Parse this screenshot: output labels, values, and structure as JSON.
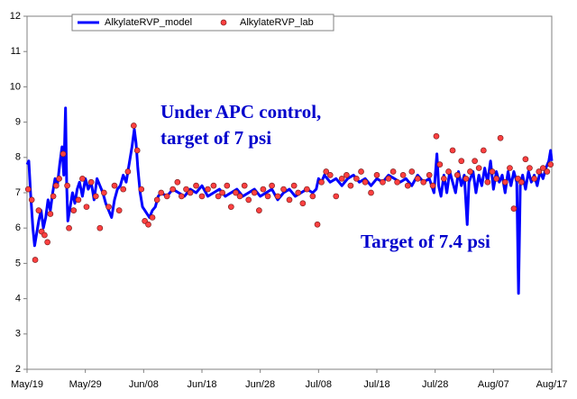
{
  "chart_data": {
    "type": "line",
    "annotations": [
      "Under APC control,",
      "target of 7 psi",
      "Target of 7.4 psi"
    ],
    "annotation_color": "#0000cc",
    "xlim": [
      0,
      90
    ],
    "xticks": [
      {
        "value": 0,
        "label": "May/19"
      },
      {
        "value": 10,
        "label": "May/29"
      },
      {
        "value": 20,
        "label": "Jun/08"
      },
      {
        "value": 30,
        "label": "Jun/18"
      },
      {
        "value": 40,
        "label": "Jun/28"
      },
      {
        "value": 50,
        "label": "Jul/08"
      },
      {
        "value": 60,
        "label": "Jul/18"
      },
      {
        "value": 70,
        "label": "Jul/28"
      },
      {
        "value": 80,
        "label": "Aug/07"
      },
      {
        "value": 90,
        "label": "Aug/17"
      }
    ],
    "ylim": [
      2,
      12
    ],
    "yticks": [
      2,
      3,
      4,
      5,
      6,
      7,
      8,
      9,
      10,
      11,
      12
    ],
    "legend": "top",
    "series": [
      {
        "name": "AlkylateRVP_model",
        "color": "#0000ff",
        "marker": "line",
        "x": [
          0,
          0.3,
          0.6,
          1.0,
          1.3,
          1.7,
          2.0,
          2.4,
          2.8,
          3.2,
          3.6,
          4.0,
          4.4,
          4.8,
          5.2,
          5.6,
          6.0,
          6.3,
          6.6,
          6.8,
          7.0,
          7.4,
          7.8,
          8.2,
          8.6,
          9.0,
          9.5,
          10.0,
          10.5,
          11.0,
          11.5,
          12.0,
          12.5,
          13.0,
          13.5,
          14.0,
          14.5,
          15.0,
          15.5,
          16.0,
          16.5,
          17.0,
          17.5,
          18.0,
          18.4,
          18.7,
          19.0,
          19.4,
          19.8,
          20.2,
          20.6,
          21.0,
          21.5,
          22.0,
          22.5,
          23,
          24,
          25,
          26,
          27,
          28,
          29,
          30,
          31,
          32,
          33,
          34,
          35,
          36,
          37,
          38,
          39,
          40,
          41,
          42,
          43,
          44,
          45,
          46,
          47,
          48,
          49,
          49.6,
          50.0,
          50.5,
          51,
          52,
          53,
          54,
          55,
          56,
          57,
          58,
          59,
          60,
          61,
          62,
          63,
          64,
          65,
          66,
          67,
          68,
          69,
          69.8,
          70.3,
          70.6,
          71,
          71.5,
          72,
          72.5,
          73,
          73.5,
          74,
          74.5,
          75,
          75.5,
          75.8,
          76.5,
          77,
          77.5,
          78,
          78.5,
          79,
          79.5,
          80,
          80.5,
          81,
          81.5,
          82,
          82.5,
          83,
          83.5,
          84.0,
          84.3,
          84.6,
          85,
          85.5,
          86,
          86.5,
          87,
          87.5,
          88,
          88.5,
          89,
          89.5,
          89.8,
          90
        ],
        "values": [
          7.8,
          7.9,
          7.0,
          6.0,
          5.5,
          5.9,
          6.2,
          6.5,
          6.0,
          6.3,
          6.8,
          6.5,
          7.0,
          7.4,
          7.2,
          7.8,
          8.3,
          7.5,
          9.4,
          7.2,
          6.2,
          6.6,
          7.0,
          6.7,
          7.1,
          7.3,
          6.9,
          7.4,
          7.1,
          7.3,
          6.8,
          7.4,
          7.2,
          7.0,
          6.7,
          6.5,
          6.3,
          6.8,
          7.1,
          7.2,
          7.5,
          7.3,
          7.8,
          8.3,
          8.8,
          8.4,
          7.7,
          7.0,
          6.6,
          6.5,
          6.4,
          6.3,
          6.5,
          6.6,
          6.9,
          7.0,
          6.9,
          7.1,
          7.0,
          6.9,
          7.1,
          7.0,
          7.2,
          6.9,
          7.0,
          7.1,
          6.9,
          7.0,
          7.1,
          6.9,
          7.0,
          7.1,
          6.9,
          7.0,
          7.1,
          6.8,
          7.0,
          7.1,
          6.9,
          7.0,
          7.1,
          7.0,
          7.1,
          7.4,
          7.3,
          7.5,
          7.3,
          7.4,
          7.2,
          7.4,
          7.5,
          7.3,
          7.4,
          7.2,
          7.4,
          7.3,
          7.5,
          7.4,
          7.3,
          7.4,
          7.2,
          7.5,
          7.3,
          7.4,
          7.0,
          8.1,
          7.2,
          6.9,
          7.5,
          7.0,
          7.6,
          7.3,
          7.0,
          7.6,
          7.2,
          7.5,
          6.1,
          7.3,
          7.6,
          7.0,
          7.5,
          7.2,
          7.7,
          7.3,
          7.9,
          7.1,
          7.6,
          7.3,
          7.5,
          7.0,
          7.6,
          7.2,
          7.6,
          7.3,
          4.15,
          7.2,
          7.5,
          7.1,
          7.6,
          7.3,
          7.5,
          7.2,
          7.6,
          7.4,
          7.7,
          7.9,
          8.2,
          7.9
        ]
      },
      {
        "name": "AlkylateRVP_lab",
        "color": "#ff4040",
        "marker": "circle",
        "x": [
          0.2,
          0.8,
          1.4,
          2,
          2.5,
          3.0,
          3.5,
          4,
          4.5,
          5.0,
          5.5,
          6.2,
          6.9,
          7.2,
          8,
          8.8,
          9.5,
          10.2,
          11,
          11.8,
          12.5,
          13.2,
          14,
          15,
          15.8,
          16.5,
          17.3,
          18.3,
          18.9,
          19.6,
          20.2,
          20.8,
          21.5,
          22.3,
          23,
          24,
          25,
          25.8,
          26.5,
          27.3,
          28,
          29,
          30,
          31,
          32,
          32.8,
          33.5,
          34.3,
          35,
          35.8,
          36.5,
          37.3,
          38,
          39,
          39.8,
          40.5,
          41.3,
          42,
          43,
          44,
          45,
          45.8,
          46.5,
          47.3,
          48,
          49,
          49.8,
          50.5,
          51.3,
          52,
          53,
          54,
          54.8,
          55.5,
          56.5,
          57.3,
          58,
          59,
          60,
          61,
          62,
          62.8,
          63.5,
          64.5,
          65.3,
          66,
          67,
          68,
          69,
          69.6,
          70.2,
          70.8,
          71.5,
          72.3,
          73,
          73.8,
          74.5,
          75.3,
          76,
          76.8,
          77.5,
          78.3,
          79,
          79.8,
          80.5,
          81.2,
          82,
          82.8,
          83.5,
          84.2,
          84.8,
          85.5,
          86.2,
          87,
          87.8,
          88.5,
          89.2,
          89.8
        ],
        "values": [
          7.1,
          6.8,
          5.1,
          6.5,
          5.9,
          5.8,
          5.6,
          6.4,
          6.9,
          7.2,
          7.4,
          8.1,
          7.2,
          6.0,
          6.5,
          6.8,
          7.4,
          6.6,
          7.3,
          6.9,
          6.0,
          7.0,
          6.6,
          7.2,
          6.5,
          7.1,
          7.6,
          8.9,
          8.2,
          7.1,
          6.2,
          6.1,
          6.3,
          6.8,
          7.0,
          6.9,
          7.1,
          7.3,
          6.9,
          7.1,
          7.0,
          7.2,
          6.9,
          7.1,
          7.2,
          6.9,
          7.0,
          7.2,
          6.6,
          7.0,
          6.9,
          7.2,
          6.8,
          7.0,
          6.5,
          7.1,
          6.9,
          7.2,
          6.9,
          7.1,
          6.8,
          7.2,
          7.0,
          6.7,
          7.1,
          6.9,
          6.1,
          7.3,
          7.6,
          7.5,
          6.9,
          7.4,
          7.5,
          7.2,
          7.4,
          7.6,
          7.3,
          7.0,
          7.5,
          7.3,
          7.4,
          7.6,
          7.3,
          7.5,
          7.2,
          7.6,
          7.4,
          7.3,
          7.5,
          7.2,
          8.6,
          7.8,
          7.4,
          7.6,
          8.2,
          7.5,
          7.9,
          7.4,
          7.6,
          7.9,
          7.7,
          8.2,
          7.3,
          7.6,
          7.4,
          8.55,
          7.3,
          7.7,
          6.55,
          7.4,
          7.3,
          7.95,
          7.7,
          7.4,
          7.6,
          7.7,
          7.6,
          7.8
        ]
      }
    ]
  }
}
